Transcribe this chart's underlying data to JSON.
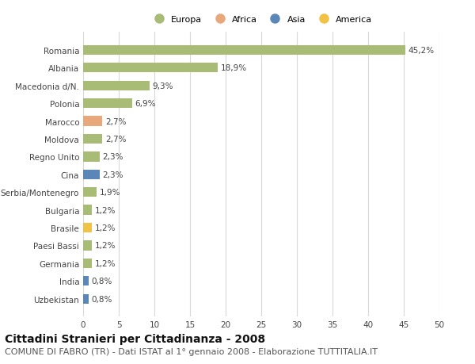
{
  "title": "Cittadini Stranieri per Cittadinanza - 2008",
  "subtitle": "COMUNE DI FABRO (TR) - Dati ISTAT al 1° gennaio 2008 - Elaborazione TUTTITALIA.IT",
  "categories": [
    "Romania",
    "Albania",
    "Macedonia d/N.",
    "Polonia",
    "Marocco",
    "Moldova",
    "Regno Unito",
    "Cina",
    "Serbia/Montenegro",
    "Bulgaria",
    "Brasile",
    "Paesi Bassi",
    "Germania",
    "India",
    "Uzbekistan"
  ],
  "values": [
    45.2,
    18.9,
    9.3,
    6.9,
    2.7,
    2.7,
    2.3,
    2.3,
    1.9,
    1.2,
    1.2,
    1.2,
    1.2,
    0.8,
    0.8
  ],
  "labels": [
    "45,2%",
    "18,9%",
    "9,3%",
    "6,9%",
    "2,7%",
    "2,7%",
    "2,3%",
    "2,3%",
    "1,9%",
    "1,2%",
    "1,2%",
    "1,2%",
    "1,2%",
    "0,8%",
    "0,8%"
  ],
  "bar_colors_list": [
    "#a8bc76",
    "#a8bc76",
    "#a8bc76",
    "#a8bc76",
    "#e8a87c",
    "#a8bc76",
    "#a8bc76",
    "#5b87b8",
    "#a8bc76",
    "#a8bc76",
    "#f2c244",
    "#a8bc76",
    "#a8bc76",
    "#5b87b8",
    "#5b87b8"
  ],
  "xlim": [
    0,
    50
  ],
  "xticks": [
    0,
    5,
    10,
    15,
    20,
    25,
    30,
    35,
    40,
    45,
    50
  ],
  "background_color": "#ffffff",
  "grid_color": "#d8d8d8",
  "legend_items": [
    "Europa",
    "Africa",
    "Asia",
    "America"
  ],
  "legend_colors": [
    "#a8bc76",
    "#e8a87c",
    "#5b87b8",
    "#f2c244"
  ],
  "title_fontsize": 10,
  "subtitle_fontsize": 8,
  "label_fontsize": 7.5,
  "tick_fontsize": 7.5,
  "bar_height": 0.55
}
